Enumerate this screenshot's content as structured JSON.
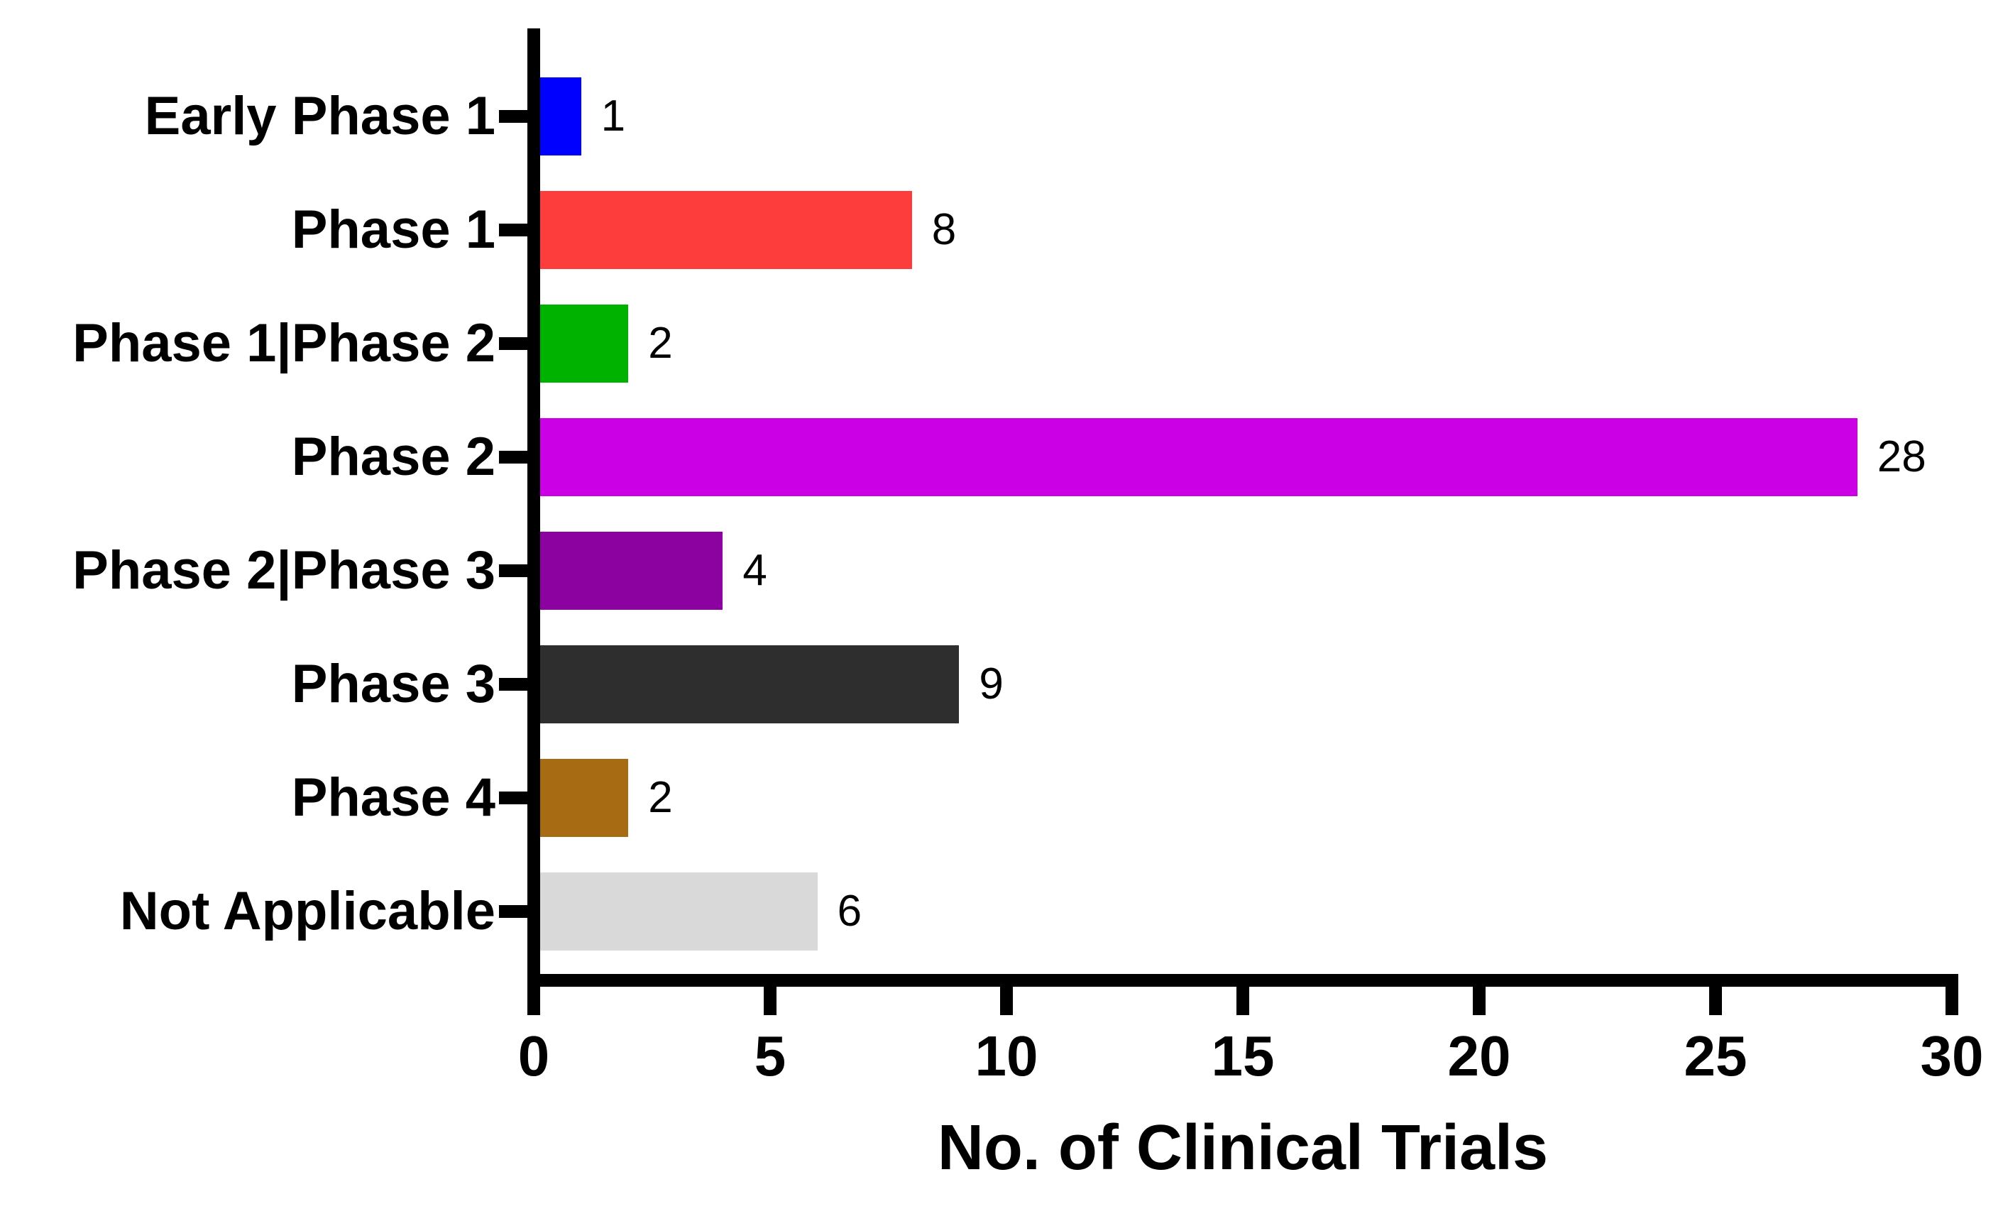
{
  "chart_data": {
    "type": "bar",
    "orientation": "horizontal",
    "title": "",
    "xlabel": "No. of Clinical Trials",
    "ylabel": "",
    "categories": [
      "Early Phase 1",
      "Phase 1",
      "Phase 1|Phase 2",
      "Phase 2",
      "Phase 2|Phase 3",
      "Phase 3",
      "Phase 4",
      "Not Applicable"
    ],
    "values": [
      1,
      8,
      2,
      28,
      4,
      9,
      2,
      6
    ],
    "value_labels": [
      "1",
      "8",
      "2",
      "28",
      "4",
      "9",
      "2",
      "6"
    ],
    "bar_colors": [
      "#0000FF",
      "#FC3D3B",
      "#00B200",
      "#CC00E5",
      "#8B02A1",
      "#2E2E2E",
      "#A66B13",
      "#D9D9D9"
    ],
    "x_ticks": [
      0,
      5,
      10,
      15,
      20,
      25,
      30
    ],
    "x_tick_labels": [
      "0",
      "5",
      "10",
      "15",
      "20",
      "25",
      "30"
    ],
    "xlim": [
      0,
      30
    ],
    "grid": false,
    "legend": "none",
    "axis_color": "#000000",
    "background_color": "#FFFFFF"
  }
}
